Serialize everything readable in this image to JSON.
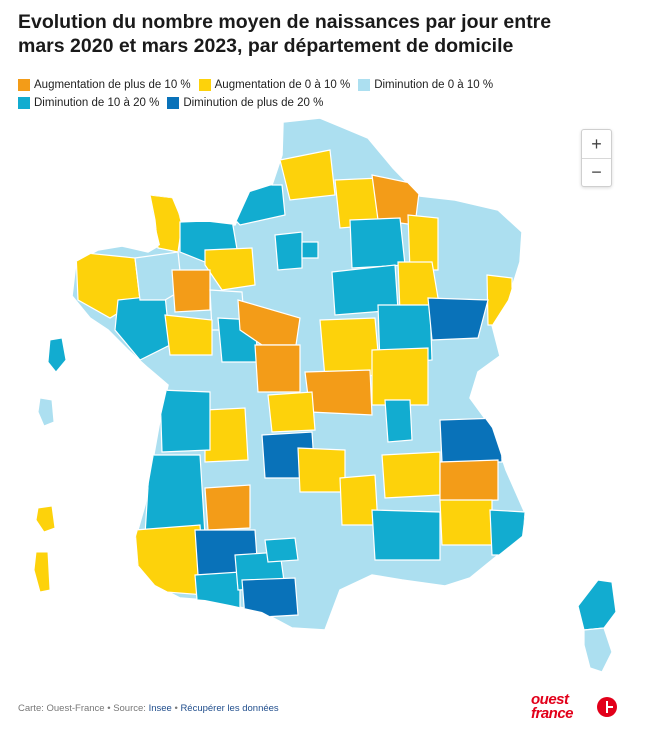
{
  "header": {
    "title_line1": "Evolution du nombre moyen de naissances par jour entre",
    "title_line2": "mars 2020 et mars 2023, par département de domicile"
  },
  "legend": {
    "items": [
      {
        "label": "Augmentation de plus de 10 %",
        "color": "#f39c18"
      },
      {
        "label": "Augmentation de 0 à 10 %",
        "color": "#fdd20b"
      },
      {
        "label": "Diminution de 0 à 10 %",
        "color": "#acdff0"
      },
      {
        "label": "Diminution de 10 à 20 %",
        "color": "#12acd0"
      },
      {
        "label": "Diminution de plus de 20 %",
        "color": "#0972b9"
      }
    ]
  },
  "map": {
    "name": "France - départements",
    "border_color": "#ffffff",
    "category_colors": {
      "inc_high": "#f39c18",
      "inc_low": "#fdd20b",
      "dec_low": "#acdff0",
      "dec_mid": "#12acd0",
      "dec_high": "#0972b9"
    }
  },
  "zoom": {
    "plus": "+",
    "minus": "−"
  },
  "footer": {
    "prefix": "Carte: Ouest-France • Source: ",
    "source": "Insee",
    "sep": " • ",
    "download": "Récupérer les données"
  },
  "logo": {
    "line1": "ouest",
    "line2": "france"
  }
}
